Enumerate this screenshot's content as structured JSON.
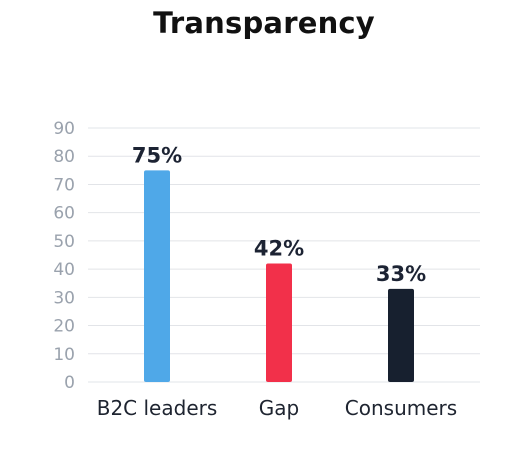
{
  "chart_data": {
    "type": "bar",
    "title": "Transparency",
    "categories": [
      "B2C leaders",
      "Gap",
      "Consumers"
    ],
    "values": [
      75,
      42,
      33
    ],
    "value_labels": [
      "75%",
      "42%",
      "33%"
    ],
    "colors": [
      "#4FA8E8",
      "#F2304A",
      "#17202F"
    ],
    "ylim": [
      0,
      90
    ],
    "yticks": [
      0,
      10,
      20,
      30,
      40,
      50,
      60,
      70,
      80,
      90
    ],
    "xlabel": "",
    "ylabel": "",
    "grid": true,
    "legend": "none"
  }
}
